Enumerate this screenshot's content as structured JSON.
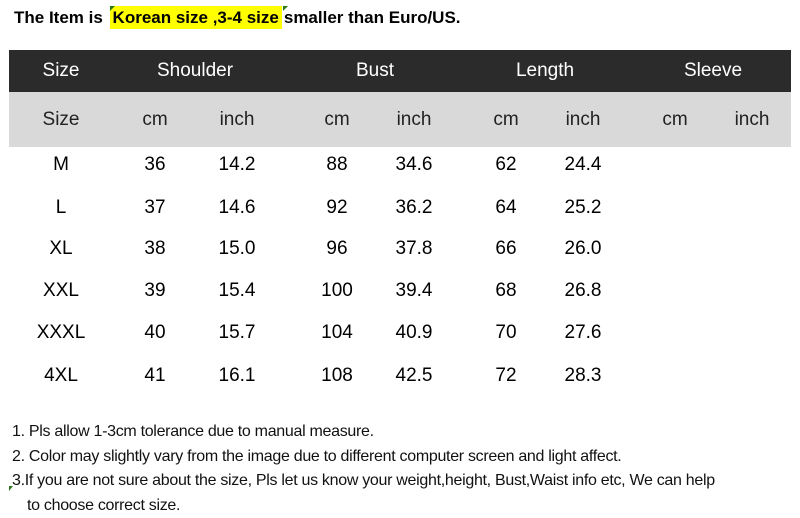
{
  "title": {
    "prefix": "The Item is",
    "highlight": "Korean size ,3-4 size",
    "suffix": "smaller than Euro/US."
  },
  "colors": {
    "header_bg": "#2b2b2b",
    "subheader_bg": "#d9d9d9",
    "highlight": "#ffff00"
  },
  "table": {
    "groups": [
      "Size",
      "Shoulder",
      "Bust",
      "Length",
      "Sleeve"
    ],
    "subheaders": [
      "Size",
      "cm",
      "inch",
      "cm",
      "inch",
      "cm",
      "inch",
      "cm",
      "inch"
    ],
    "rows": [
      [
        "M",
        "36",
        "14.2",
        "88",
        "34.6",
        "62",
        "24.4",
        "",
        ""
      ],
      [
        "L",
        "37",
        "14.6",
        "92",
        "36.2",
        "64",
        "25.2",
        "",
        ""
      ],
      [
        "XL",
        "38",
        "15.0",
        "96",
        "37.8",
        "66",
        "26.0",
        "",
        ""
      ],
      [
        "XXL",
        "39",
        "15.4",
        "100",
        "39.4",
        "68",
        "26.8",
        "",
        ""
      ],
      [
        "XXXL",
        "40",
        "15.7",
        "104",
        "40.9",
        "70",
        "27.6",
        "",
        ""
      ],
      [
        "4XL",
        "41",
        "16.1",
        "108",
        "42.5",
        "72",
        "28.3",
        "",
        ""
      ]
    ]
  },
  "notes": [
    "1. Pls allow 1-3cm tolerance due to manual measure.",
    "2. Color may slightly vary from the image due to different computer screen and light affect.",
    "3.If you are not sure about the size, Pls let us know your weight,height, Bust,Waist info etc, We can help",
    "to choose correct size."
  ]
}
